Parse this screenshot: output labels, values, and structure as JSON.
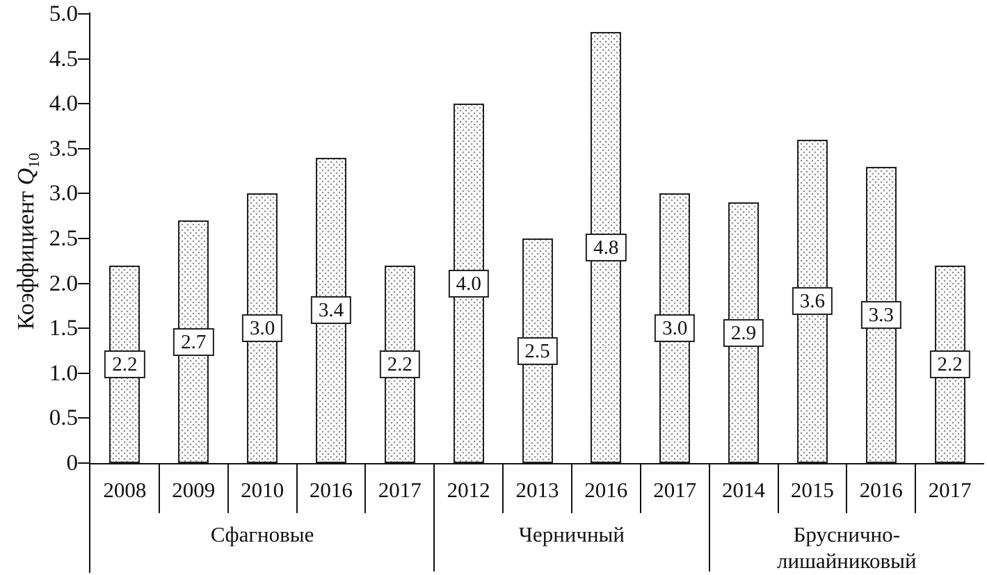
{
  "chart_data": {
    "type": "bar",
    "title": "",
    "ylabel_text": "Коэффициент Q10",
    "ylabel_parts": {
      "prefix": "Коэффициент ",
      "symbol": "Q",
      "subscript": "10"
    },
    "xlabel": "",
    "ylim": [
      0,
      5.0
    ],
    "ytick_step": 0.5,
    "yticks": [
      "0",
      "0.5",
      "1.0",
      "1.5",
      "2.0",
      "2.5",
      "3.0",
      "3.5",
      "4.0",
      "4.5",
      "5.0"
    ],
    "grid": false,
    "legend": "none",
    "bar_style": {
      "fill": "#fcfcfc",
      "dot_color": "#8f8f8f",
      "border": "#222222"
    },
    "groups": [
      {
        "label": "Сфагновые",
        "label_lines": [
          "Сфагновые"
        ],
        "categories": [
          "2008",
          "2009",
          "2010",
          "2016",
          "2017"
        ],
        "values": [
          2.2,
          2.7,
          3.0,
          3.4,
          2.2
        ],
        "value_labels": [
          "2.2",
          "2.7",
          "3.0",
          "3.4",
          "2.2"
        ]
      },
      {
        "label": "Черничный",
        "label_lines": [
          "Черничный"
        ],
        "categories": [
          "2012",
          "2013",
          "2016",
          "2017"
        ],
        "values": [
          4.0,
          2.5,
          4.8,
          3.0
        ],
        "value_labels": [
          "4.0",
          "2.5",
          "4.8",
          "3.0"
        ]
      },
      {
        "label": "Бруснично-лишайниковый",
        "label_lines": [
          "Бруснично-",
          "лишайниковый"
        ],
        "categories": [
          "2014",
          "2015",
          "2016",
          "2017"
        ],
        "values": [
          2.9,
          3.6,
          3.3,
          2.2
        ],
        "value_labels": [
          "2.9",
          "3.6",
          "3.3",
          "2.2"
        ]
      }
    ]
  }
}
